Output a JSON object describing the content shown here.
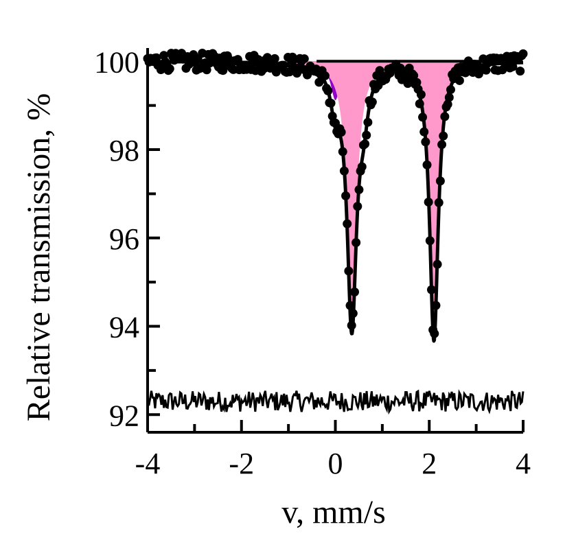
{
  "chart_data": {
    "type": "scatter",
    "title": "",
    "xlabel": "v, mm/s",
    "ylabel": "Relative transmission, %",
    "xlim": [
      -4,
      4
    ],
    "ylim": [
      91.6,
      100.3
    ],
    "x_ticks": [
      -4,
      -2,
      0,
      2,
      4
    ],
    "x_tick_labels": [
      "-4",
      "-2",
      "0",
      "2",
      "4"
    ],
    "y_ticks": [
      92,
      94,
      96,
      98,
      100
    ],
    "y_tick_labels": [
      "92",
      "94",
      "96",
      "98",
      "100"
    ],
    "grid": false,
    "legend": "none",
    "baseline": 100,
    "fit_components": [
      {
        "kind": "doublet",
        "color": "#9400c8",
        "lines": [
          {
            "center": 0.0,
            "depth": 0.85,
            "hwhm": 0.12
          },
          {
            "center": 0.6,
            "depth": 0.85,
            "hwhm": 0.12
          }
        ]
      },
      {
        "kind": "doublet",
        "color": "#ff99cc",
        "lines": [
          {
            "center": 0.35,
            "depth": 5.9,
            "hwhm": 0.12
          },
          {
            "center": 2.1,
            "depth": 6.3,
            "hwhm": 0.11
          }
        ]
      }
    ],
    "residual_offset": 92.3,
    "residual_noise_amplitude": 0.2,
    "noise_amplitude": 0.2,
    "data_points_count": 255,
    "colors": {
      "points": "#000000",
      "fit_line": "#000000",
      "axes": "#000000"
    }
  }
}
